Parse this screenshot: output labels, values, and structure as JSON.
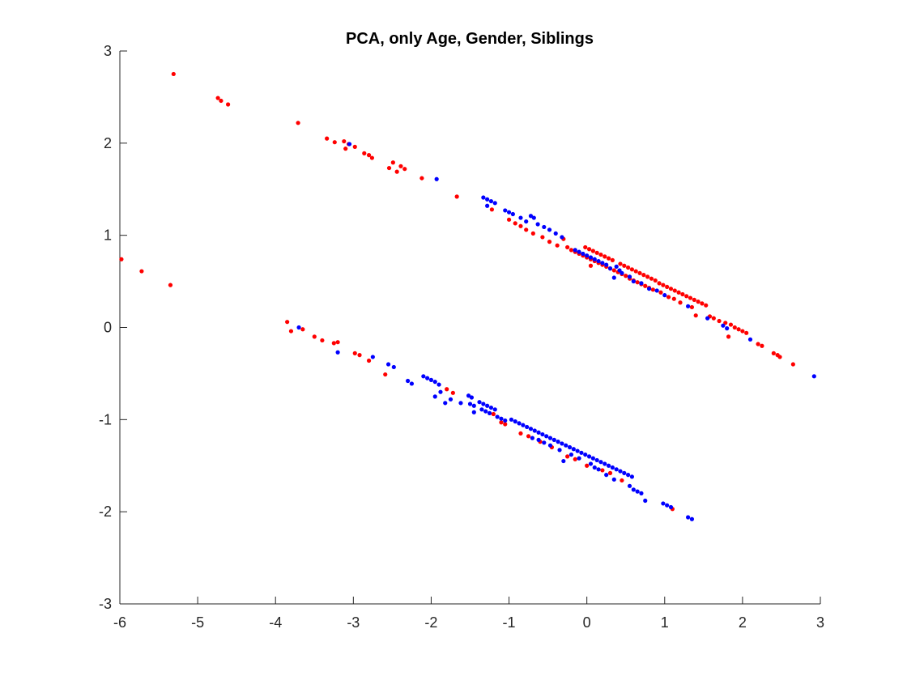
{
  "chart_data": {
    "type": "scatter",
    "title": "PCA, only Age, Gender, Siblings",
    "xlabel": "",
    "ylabel": "",
    "xlim": [
      -6,
      3
    ],
    "ylim": [
      -3,
      3
    ],
    "xticks": [
      -6,
      -5,
      -4,
      -3,
      -2,
      -1,
      0,
      1,
      2,
      3
    ],
    "yticks": [
      -3,
      -2,
      -1,
      0,
      1,
      2,
      3
    ],
    "grid": false,
    "series": [
      {
        "color": "#ff0000",
        "points": [
          [
            -5.98,
            0.74
          ],
          [
            -5.72,
            0.61
          ],
          [
            -5.35,
            0.46
          ],
          [
            -5.31,
            2.75
          ],
          [
            -4.74,
            2.49
          ],
          [
            -4.7,
            2.46
          ],
          [
            -4.61,
            2.42
          ],
          [
            -3.71,
            2.22
          ],
          [
            -3.34,
            2.05
          ],
          [
            -3.24,
            2.01
          ],
          [
            -3.12,
            2.02
          ],
          [
            -3.1,
            1.94
          ],
          [
            -3.06,
            1.99
          ],
          [
            -2.98,
            1.96
          ],
          [
            -2.86,
            1.89
          ],
          [
            -2.8,
            1.87
          ],
          [
            -2.76,
            1.84
          ],
          [
            -2.54,
            1.73
          ],
          [
            -2.49,
            1.79
          ],
          [
            -2.44,
            1.69
          ],
          [
            -2.39,
            1.75
          ],
          [
            -2.34,
            1.72
          ],
          [
            -2.12,
            1.62
          ],
          [
            -1.67,
            1.42
          ],
          [
            -1.22,
            1.28
          ],
          [
            -1.0,
            1.17
          ],
          [
            -0.92,
            1.13
          ],
          [
            -0.85,
            1.1
          ],
          [
            -0.78,
            1.06
          ],
          [
            -0.69,
            1.02
          ],
          [
            -0.57,
            0.98
          ],
          [
            -0.48,
            0.93
          ],
          [
            -0.38,
            0.89
          ],
          [
            -0.3,
            0.96
          ],
          [
            -0.25,
            0.87
          ],
          [
            -0.2,
            0.84
          ],
          [
            -0.15,
            0.82
          ],
          [
            -0.1,
            0.8
          ],
          [
            -0.05,
            0.78
          ],
          [
            0.0,
            0.76
          ],
          [
            0.05,
            0.74
          ],
          [
            0.1,
            0.72
          ],
          [
            0.15,
            0.7
          ],
          [
            0.2,
            0.68
          ],
          [
            0.25,
            0.66
          ],
          [
            0.3,
            0.64
          ],
          [
            0.35,
            0.62
          ],
          [
            0.4,
            0.6
          ],
          [
            0.45,
            0.58
          ],
          [
            0.5,
            0.56
          ],
          [
            0.55,
            0.53
          ],
          [
            0.6,
            0.51
          ],
          [
            0.65,
            0.49
          ],
          [
            0.7,
            0.47
          ],
          [
            0.75,
            0.45
          ],
          [
            0.8,
            0.43
          ],
          [
            0.85,
            0.41
          ],
          [
            0.05,
            0.67
          ],
          [
            -0.02,
            0.87
          ],
          [
            0.03,
            0.85
          ],
          [
            0.08,
            0.83
          ],
          [
            0.13,
            0.81
          ],
          [
            0.18,
            0.79
          ],
          [
            0.23,
            0.77
          ],
          [
            0.28,
            0.75
          ],
          [
            0.33,
            0.73
          ],
          [
            0.43,
            0.69
          ],
          [
            0.48,
            0.67
          ],
          [
            0.53,
            0.65
          ],
          [
            0.58,
            0.63
          ],
          [
            0.63,
            0.61
          ],
          [
            0.68,
            0.59
          ],
          [
            0.73,
            0.57
          ],
          [
            0.78,
            0.55
          ],
          [
            0.83,
            0.53
          ],
          [
            0.88,
            0.51
          ],
          [
            0.93,
            0.48
          ],
          [
            0.98,
            0.46
          ],
          [
            1.03,
            0.44
          ],
          [
            1.08,
            0.42
          ],
          [
            1.13,
            0.4
          ],
          [
            1.18,
            0.38
          ],
          [
            1.23,
            0.36
          ],
          [
            1.28,
            0.34
          ],
          [
            1.33,
            0.32
          ],
          [
            1.38,
            0.3
          ],
          [
            1.43,
            0.28
          ],
          [
            1.48,
            0.26
          ],
          [
            1.53,
            0.24
          ],
          [
            0.95,
            0.38
          ],
          [
            1.05,
            0.33
          ],
          [
            1.12,
            0.31
          ],
          [
            1.2,
            0.27
          ],
          [
            1.35,
            0.22
          ],
          [
            1.4,
            0.13
          ],
          [
            1.58,
            0.12
          ],
          [
            1.63,
            0.1
          ],
          [
            1.7,
            0.07
          ],
          [
            1.78,
            0.05
          ],
          [
            1.85,
            0.03
          ],
          [
            1.9,
            0.0
          ],
          [
            1.95,
            -0.02
          ],
          [
            2.0,
            -0.04
          ],
          [
            2.05,
            -0.06
          ],
          [
            1.82,
            -0.1
          ],
          [
            2.2,
            -0.18
          ],
          [
            2.25,
            -0.2
          ],
          [
            2.4,
            -0.28
          ],
          [
            2.45,
            -0.3
          ],
          [
            2.48,
            -0.32
          ],
          [
            2.65,
            -0.4
          ],
          [
            -3.85,
            0.06
          ],
          [
            -3.8,
            -0.04
          ],
          [
            -3.65,
            -0.02
          ],
          [
            -3.5,
            -0.1
          ],
          [
            -3.4,
            -0.14
          ],
          [
            -3.25,
            -0.17
          ],
          [
            -3.2,
            -0.16
          ],
          [
            -2.98,
            -0.28
          ],
          [
            -2.92,
            -0.3
          ],
          [
            -2.8,
            -0.36
          ],
          [
            -2.59,
            -0.51
          ],
          [
            -1.8,
            -0.67
          ],
          [
            -1.72,
            -0.71
          ],
          [
            -1.2,
            -0.94
          ],
          [
            -1.1,
            -1.03
          ],
          [
            -1.05,
            -1.05
          ],
          [
            -0.85,
            -1.15
          ],
          [
            -0.75,
            -1.18
          ],
          [
            -0.6,
            -1.24
          ],
          [
            -0.45,
            -1.3
          ],
          [
            -0.25,
            -1.4
          ],
          [
            -0.15,
            -1.43
          ],
          [
            0.0,
            -1.5
          ],
          [
            0.2,
            -1.55
          ],
          [
            0.3,
            -1.58
          ],
          [
            0.45,
            -1.66
          ],
          [
            1.1,
            -1.97
          ]
        ]
      },
      {
        "color": "#0000ff",
        "points": [
          [
            -3.7,
            0.0
          ],
          [
            -3.2,
            -0.27
          ],
          [
            -3.05,
            1.99
          ],
          [
            -2.75,
            -0.32
          ],
          [
            -2.55,
            -0.4
          ],
          [
            -2.48,
            -0.43
          ],
          [
            -2.3,
            -0.58
          ],
          [
            -2.25,
            -0.61
          ],
          [
            -2.1,
            -0.53
          ],
          [
            -2.05,
            -0.55
          ],
          [
            -2.0,
            -0.57
          ],
          [
            -1.95,
            -0.59
          ],
          [
            -1.9,
            -0.62
          ],
          [
            -1.95,
            -0.75
          ],
          [
            -1.88,
            -0.7
          ],
          [
            -1.82,
            -0.82
          ],
          [
            -1.75,
            -0.78
          ],
          [
            -1.62,
            -0.82
          ],
          [
            -1.52,
            -0.74
          ],
          [
            -1.48,
            -0.76
          ],
          [
            -1.5,
            -0.83
          ],
          [
            -1.45,
            -0.85
          ],
          [
            -1.45,
            -0.92
          ],
          [
            -1.38,
            -0.81
          ],
          [
            -1.33,
            -0.83
          ],
          [
            -1.28,
            -0.85
          ],
          [
            -1.23,
            -0.87
          ],
          [
            -1.18,
            -0.89
          ],
          [
            -1.35,
            -0.89
          ],
          [
            -1.3,
            -0.91
          ],
          [
            -1.25,
            -0.93
          ],
          [
            -1.15,
            -0.97
          ],
          [
            -1.1,
            -0.99
          ],
          [
            -1.05,
            -1.01
          ],
          [
            -0.97,
            -1.0
          ],
          [
            -0.92,
            -1.02
          ],
          [
            -0.87,
            -1.04
          ],
          [
            -0.82,
            -1.06
          ],
          [
            -0.77,
            -1.08
          ],
          [
            -0.72,
            -1.1
          ],
          [
            -0.67,
            -1.12
          ],
          [
            -0.62,
            -1.14
          ],
          [
            -0.57,
            -1.16
          ],
          [
            -0.52,
            -1.18
          ],
          [
            -0.47,
            -1.2
          ],
          [
            -0.42,
            -1.22
          ],
          [
            -0.37,
            -1.24
          ],
          [
            -0.32,
            -1.26
          ],
          [
            -0.27,
            -1.28
          ],
          [
            -0.22,
            -1.3
          ],
          [
            -0.17,
            -1.32
          ],
          [
            -0.12,
            -1.34
          ],
          [
            -0.07,
            -1.36
          ],
          [
            -0.02,
            -1.38
          ],
          [
            0.03,
            -1.4
          ],
          [
            0.08,
            -1.42
          ],
          [
            0.13,
            -1.44
          ],
          [
            0.18,
            -1.46
          ],
          [
            0.23,
            -1.48
          ],
          [
            0.28,
            -1.5
          ],
          [
            0.33,
            -1.52
          ],
          [
            0.38,
            -1.54
          ],
          [
            0.43,
            -1.56
          ],
          [
            0.48,
            -1.58
          ],
          [
            0.53,
            -1.6
          ],
          [
            0.58,
            -1.62
          ],
          [
            -0.7,
            -1.2
          ],
          [
            -0.62,
            -1.22
          ],
          [
            -0.55,
            -1.25
          ],
          [
            -0.47,
            -1.28
          ],
          [
            -0.35,
            -1.33
          ],
          [
            -0.3,
            -1.45
          ],
          [
            -0.2,
            -1.38
          ],
          [
            -0.1,
            -1.42
          ],
          [
            0.05,
            -1.48
          ],
          [
            0.1,
            -1.52
          ],
          [
            0.15,
            -1.54
          ],
          [
            0.25,
            -1.6
          ],
          [
            0.35,
            -1.65
          ],
          [
            0.55,
            -1.72
          ],
          [
            0.6,
            -1.76
          ],
          [
            0.65,
            -1.78
          ],
          [
            0.7,
            -1.8
          ],
          [
            0.75,
            -1.88
          ],
          [
            0.98,
            -1.91
          ],
          [
            1.03,
            -1.93
          ],
          [
            1.08,
            -1.95
          ],
          [
            1.3,
            -2.06
          ],
          [
            1.35,
            -2.08
          ],
          [
            -1.93,
            1.61
          ],
          [
            -1.33,
            1.41
          ],
          [
            -1.28,
            1.39
          ],
          [
            -1.23,
            1.37
          ],
          [
            -1.18,
            1.35
          ],
          [
            -1.28,
            1.32
          ],
          [
            -1.05,
            1.27
          ],
          [
            -1.0,
            1.25
          ],
          [
            -0.95,
            1.23
          ],
          [
            -0.85,
            1.19
          ],
          [
            -0.78,
            1.15
          ],
          [
            -0.72,
            1.21
          ],
          [
            -0.68,
            1.19
          ],
          [
            -0.63,
            1.12
          ],
          [
            -0.55,
            1.09
          ],
          [
            -0.48,
            1.06
          ],
          [
            -0.4,
            1.02
          ],
          [
            -0.32,
            0.98
          ],
          [
            -0.15,
            0.84
          ],
          [
            -0.1,
            0.82
          ],
          [
            -0.05,
            0.8
          ],
          [
            0.0,
            0.78
          ],
          [
            0.05,
            0.76
          ],
          [
            0.1,
            0.74
          ],
          [
            0.15,
            0.72
          ],
          [
            0.2,
            0.7
          ],
          [
            0.25,
            0.68
          ],
          [
            0.3,
            0.64
          ],
          [
            0.35,
            0.54
          ],
          [
            0.38,
            0.66
          ],
          [
            0.42,
            0.62
          ],
          [
            0.45,
            0.59
          ],
          [
            0.55,
            0.55
          ],
          [
            0.6,
            0.5
          ],
          [
            0.7,
            0.48
          ],
          [
            0.8,
            0.42
          ],
          [
            0.9,
            0.4
          ],
          [
            1.0,
            0.35
          ],
          [
            1.3,
            0.23
          ],
          [
            1.55,
            0.1
          ],
          [
            1.75,
            0.02
          ],
          [
            1.8,
            -0.01
          ],
          [
            2.1,
            -0.13
          ],
          [
            2.92,
            -0.53
          ]
        ]
      }
    ]
  }
}
